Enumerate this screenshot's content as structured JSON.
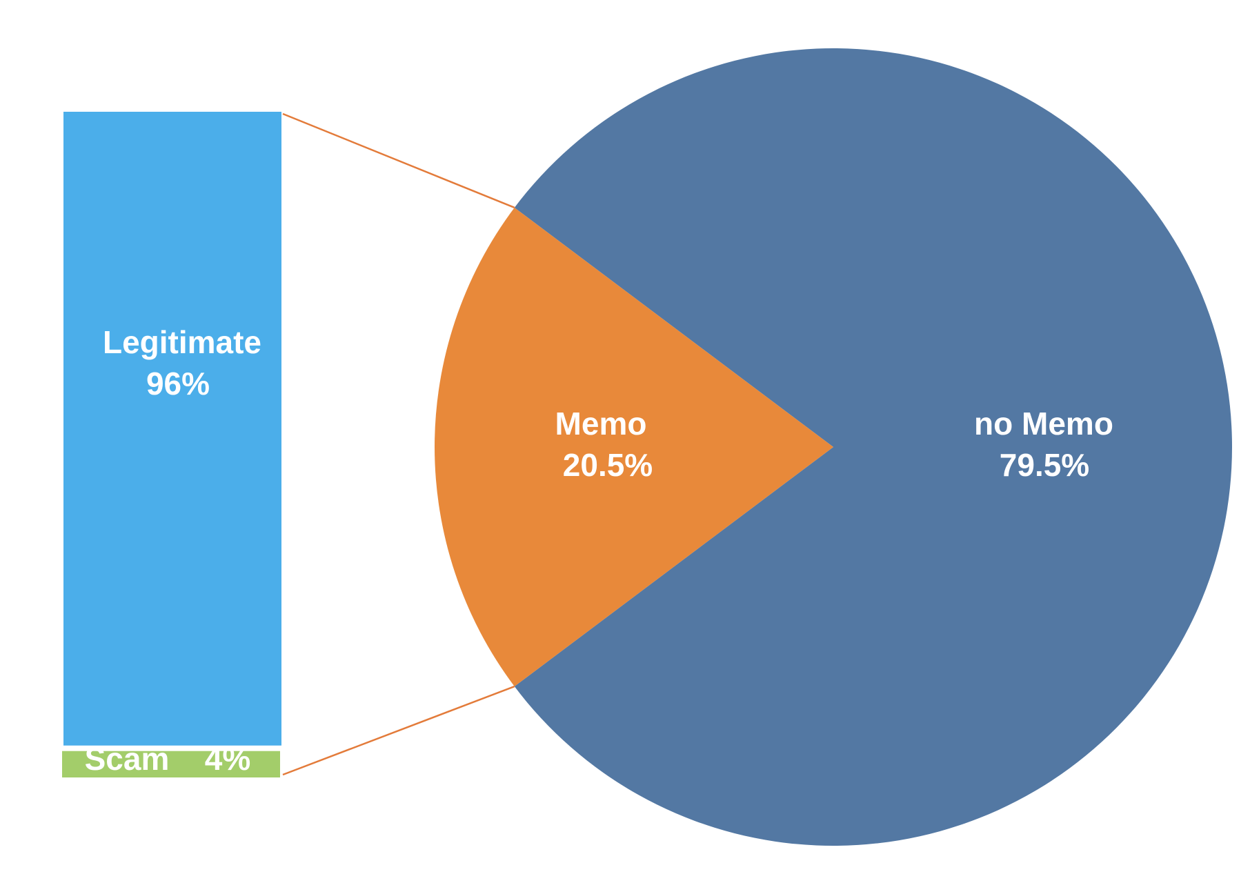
{
  "chart_data": [
    {
      "type": "pie",
      "title": "",
      "slices": [
        {
          "label": "Memo",
          "percent_label": "20.5%",
          "value": 20.5,
          "color": "#E8893A"
        },
        {
          "label": "no Memo",
          "percent_label": "79.5%",
          "value": 79.5,
          "color": "#5378A3"
        }
      ],
      "exploded_slice": "Memo"
    },
    {
      "type": "bar",
      "stacked": true,
      "title": "",
      "categories": [
        "Memo"
      ],
      "series": [
        {
          "name": "Legitimate",
          "percent_label": "96%",
          "value": 96,
          "color": "#4BAEEA"
        },
        {
          "name": "Scam",
          "percent_label": "4%",
          "value": 4,
          "color": "#A3CD6A"
        }
      ]
    }
  ],
  "connector_color": "#E37B3A"
}
